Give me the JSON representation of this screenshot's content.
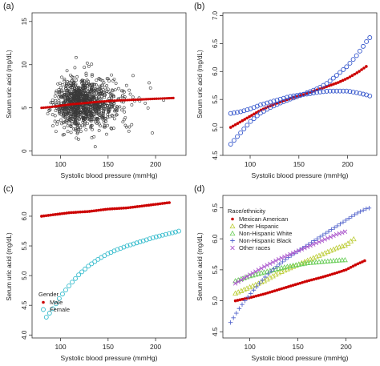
{
  "chart_data": [
    {
      "panel": "(a)",
      "type": "scatter",
      "xlabel": "Systolic blood pressure (mmHg)",
      "ylabel": "Serum uric acid (mg/dL)",
      "xlim": [
        70,
        232
      ],
      "ylim": [
        -0.5,
        16
      ],
      "xticks": [
        100,
        150,
        200
      ],
      "yticks": [
        0,
        5,
        10,
        15
      ],
      "scatter_summary": {
        "description": "dense cloud of individual observations",
        "x_range": [
          82,
          230
        ],
        "y_range": [
          0.5,
          15
        ],
        "center_x": 120,
        "center_y": 5.5
      },
      "series": [
        {
          "kind": "fitted",
          "color": "#cc0000",
          "x": [
            80,
            90,
            100,
            110,
            120,
            130,
            140,
            150,
            160,
            170,
            180,
            190,
            200,
            210,
            220
          ],
          "y": [
            5.0,
            5.1,
            5.25,
            5.4,
            5.5,
            5.6,
            5.7,
            5.78,
            5.85,
            5.9,
            5.95,
            6.0,
            6.05,
            6.1,
            6.15
          ]
        }
      ]
    },
    {
      "panel": "(b)",
      "type": "line",
      "xlabel": "Systolic blood pressure (mmHg)",
      "ylabel": "Serum uric acid (mg/dL)",
      "xlim": [
        72,
        230
      ],
      "ylim": [
        4.5,
        7.05
      ],
      "xticks": [
        100,
        150,
        200
      ],
      "yticks": [
        4.5,
        5.0,
        5.5,
        6.0,
        6.5,
        7.0
      ],
      "series": [
        {
          "marker": "filled-dot",
          "color": "#cc0000",
          "x": [
            80,
            90,
            100,
            110,
            120,
            130,
            140,
            150,
            160,
            170,
            180,
            190,
            200,
            210,
            220
          ],
          "y": [
            5.0,
            5.1,
            5.2,
            5.3,
            5.38,
            5.45,
            5.51,
            5.56,
            5.62,
            5.68,
            5.74,
            5.8,
            5.88,
            5.98,
            6.1
          ]
        },
        {
          "marker": "open-circle",
          "color": "#3355cc",
          "x": [
            80,
            90,
            100,
            110,
            120,
            130,
            140,
            150,
            160,
            170,
            180,
            190,
            200,
            210,
            220,
            225
          ],
          "y": [
            4.7,
            4.9,
            5.1,
            5.25,
            5.35,
            5.43,
            5.5,
            5.56,
            5.63,
            5.7,
            5.8,
            5.95,
            6.1,
            6.3,
            6.55,
            6.65
          ]
        },
        {
          "marker": "open-circle",
          "color": "#3355cc",
          "x": [
            80,
            90,
            100,
            110,
            120,
            130,
            140,
            150,
            160,
            170,
            180,
            190,
            200,
            210,
            220,
            225
          ],
          "y": [
            5.25,
            5.28,
            5.33,
            5.4,
            5.45,
            5.5,
            5.55,
            5.58,
            5.6,
            5.63,
            5.65,
            5.65,
            5.65,
            5.62,
            5.58,
            5.55
          ]
        }
      ]
    },
    {
      "panel": "(c)",
      "type": "line",
      "xlabel": "Systolic blood pressure (mmHg)",
      "ylabel": "Serum uric acid (mg/dL)",
      "xlim": [
        70,
        232
      ],
      "ylim": [
        3.95,
        6.35
      ],
      "xticks": [
        100,
        150,
        200
      ],
      "yticks": [
        4.0,
        4.5,
        5.0,
        5.5,
        6.0
      ],
      "legend": {
        "title": "Gender",
        "position": "bottom-left"
      },
      "series": [
        {
          "name": "Male",
          "marker": "filled-dot",
          "color": "#cc0000",
          "x": [
            80,
            90,
            100,
            110,
            120,
            130,
            140,
            150,
            160,
            170,
            180,
            190,
            200,
            210,
            215
          ],
          "y": [
            6.0,
            6.02,
            6.04,
            6.06,
            6.07,
            6.08,
            6.1,
            6.12,
            6.13,
            6.14,
            6.16,
            6.18,
            6.2,
            6.22,
            6.23
          ]
        },
        {
          "name": "Female",
          "marker": "open-circle",
          "color": "#33bbcc",
          "x": [
            85,
            90,
            95,
            100,
            110,
            120,
            130,
            140,
            150,
            160,
            170,
            180,
            190,
            200,
            210,
            220,
            227
          ],
          "y": [
            4.3,
            4.4,
            4.52,
            4.65,
            4.85,
            5.03,
            5.17,
            5.28,
            5.37,
            5.44,
            5.5,
            5.55,
            5.6,
            5.65,
            5.69,
            5.73,
            5.76
          ]
        }
      ]
    },
    {
      "panel": "(d)",
      "type": "line",
      "xlabel": "Systolic blood pressure (mmHg)",
      "ylabel": "Serum uric acid (mg/dL)",
      "xlim": [
        72,
        232
      ],
      "ylim": [
        4.4,
        6.7
      ],
      "xticks": [
        100,
        150,
        200
      ],
      "yticks": [
        4.5,
        5.0,
        5.5,
        6.0,
        6.5
      ],
      "legend": {
        "title": "Race/ethnicity",
        "position": "top-left"
      },
      "series": [
        {
          "name": "Mexican American",
          "marker": "filled-dot",
          "color": "#cc0000",
          "x": [
            85,
            100,
            115,
            130,
            145,
            160,
            175,
            190,
            200,
            210,
            220
          ],
          "y": [
            5.0,
            5.05,
            5.11,
            5.18,
            5.25,
            5.32,
            5.38,
            5.45,
            5.5,
            5.58,
            5.65
          ]
        },
        {
          "name": "Other Hispanic",
          "marker": "open-triangle",
          "color": "#bbcc33",
          "x": [
            85,
            100,
            115,
            130,
            145,
            160,
            175,
            190,
            200,
            210
          ],
          "y": [
            5.12,
            5.22,
            5.32,
            5.45,
            5.55,
            5.65,
            5.75,
            5.85,
            5.9,
            6.02
          ]
        },
        {
          "name": "Non-Hispanic White",
          "marker": "open-triangle",
          "color": "#66cc55",
          "x": [
            85,
            100,
            115,
            130,
            145,
            160,
            175,
            190,
            200
          ],
          "y": [
            5.32,
            5.4,
            5.46,
            5.52,
            5.57,
            5.61,
            5.63,
            5.65,
            5.66
          ]
        },
        {
          "name": "Non-Hispanic Black",
          "marker": "plus",
          "color": "#5566cc",
          "x": [
            80,
            90,
            100,
            110,
            120,
            130,
            140,
            150,
            160,
            170,
            180,
            190,
            200,
            210,
            220,
            225
          ],
          "y": [
            4.65,
            4.9,
            5.1,
            5.28,
            5.45,
            5.58,
            5.7,
            5.8,
            5.9,
            6.0,
            6.1,
            6.2,
            6.3,
            6.4,
            6.48,
            6.5
          ]
        },
        {
          "name": "Other races",
          "marker": "cross",
          "color": "#aa55cc",
          "x": [
            85,
            100,
            115,
            130,
            145,
            160,
            175,
            190,
            200
          ],
          "y": [
            5.28,
            5.42,
            5.55,
            5.67,
            5.77,
            5.87,
            5.97,
            6.07,
            6.12
          ]
        }
      ]
    }
  ]
}
